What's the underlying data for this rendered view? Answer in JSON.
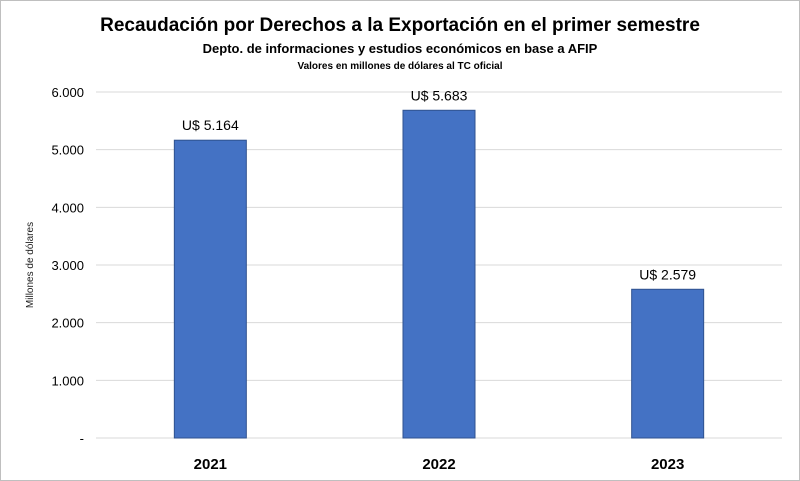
{
  "chart_data": {
    "type": "bar",
    "title": "Recaudación por Derechos a la Exportación en el primer semestre",
    "subtitle": "Depto. de informaciones y estudios económicos en base a AFIP",
    "subtitle2": "Valores en millones de dólares al TC oficial",
    "xlabel": "",
    "ylabel": "Millones de dólares",
    "categories": [
      "2021",
      "2022",
      "2023"
    ],
    "values": [
      5164,
      5683,
      2579
    ],
    "data_labels": [
      "U$ 5.164",
      "U$ 5.683",
      "U$ 2.579"
    ],
    "ylim": [
      0,
      6000
    ],
    "yticks": [
      0,
      1000,
      2000,
      3000,
      4000,
      5000,
      6000
    ],
    "ytick_labels": [
      "-",
      "1.000",
      "2.000",
      "3.000",
      "4.000",
      "5.000",
      "6.000"
    ],
    "grid": true,
    "bar_color": "#4472C4",
    "bar_border_color": "#2F528F",
    "grid_color": "#d9d9d9"
  }
}
